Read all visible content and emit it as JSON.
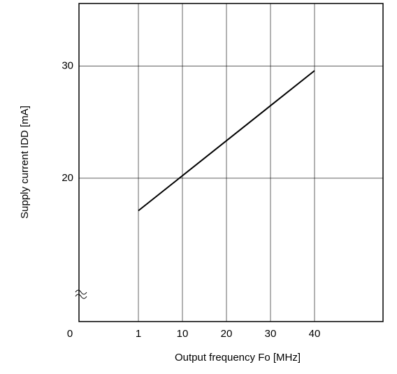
{
  "chart_data": {
    "type": "line",
    "xlabel": "Output frequency Fo [MHz]",
    "ylabel": "Supply current IDD [mA]",
    "x": [
      1,
      40
    ],
    "values": [
      17.1,
      29.6
    ],
    "color": "#000000",
    "xlim": [
      0,
      50
    ],
    "xticks": [
      0,
      1,
      10,
      20,
      30,
      40
    ],
    "ylim": [
      7.2,
      35.6
    ],
    "yticks": [
      20,
      30
    ],
    "grid": true
  }
}
